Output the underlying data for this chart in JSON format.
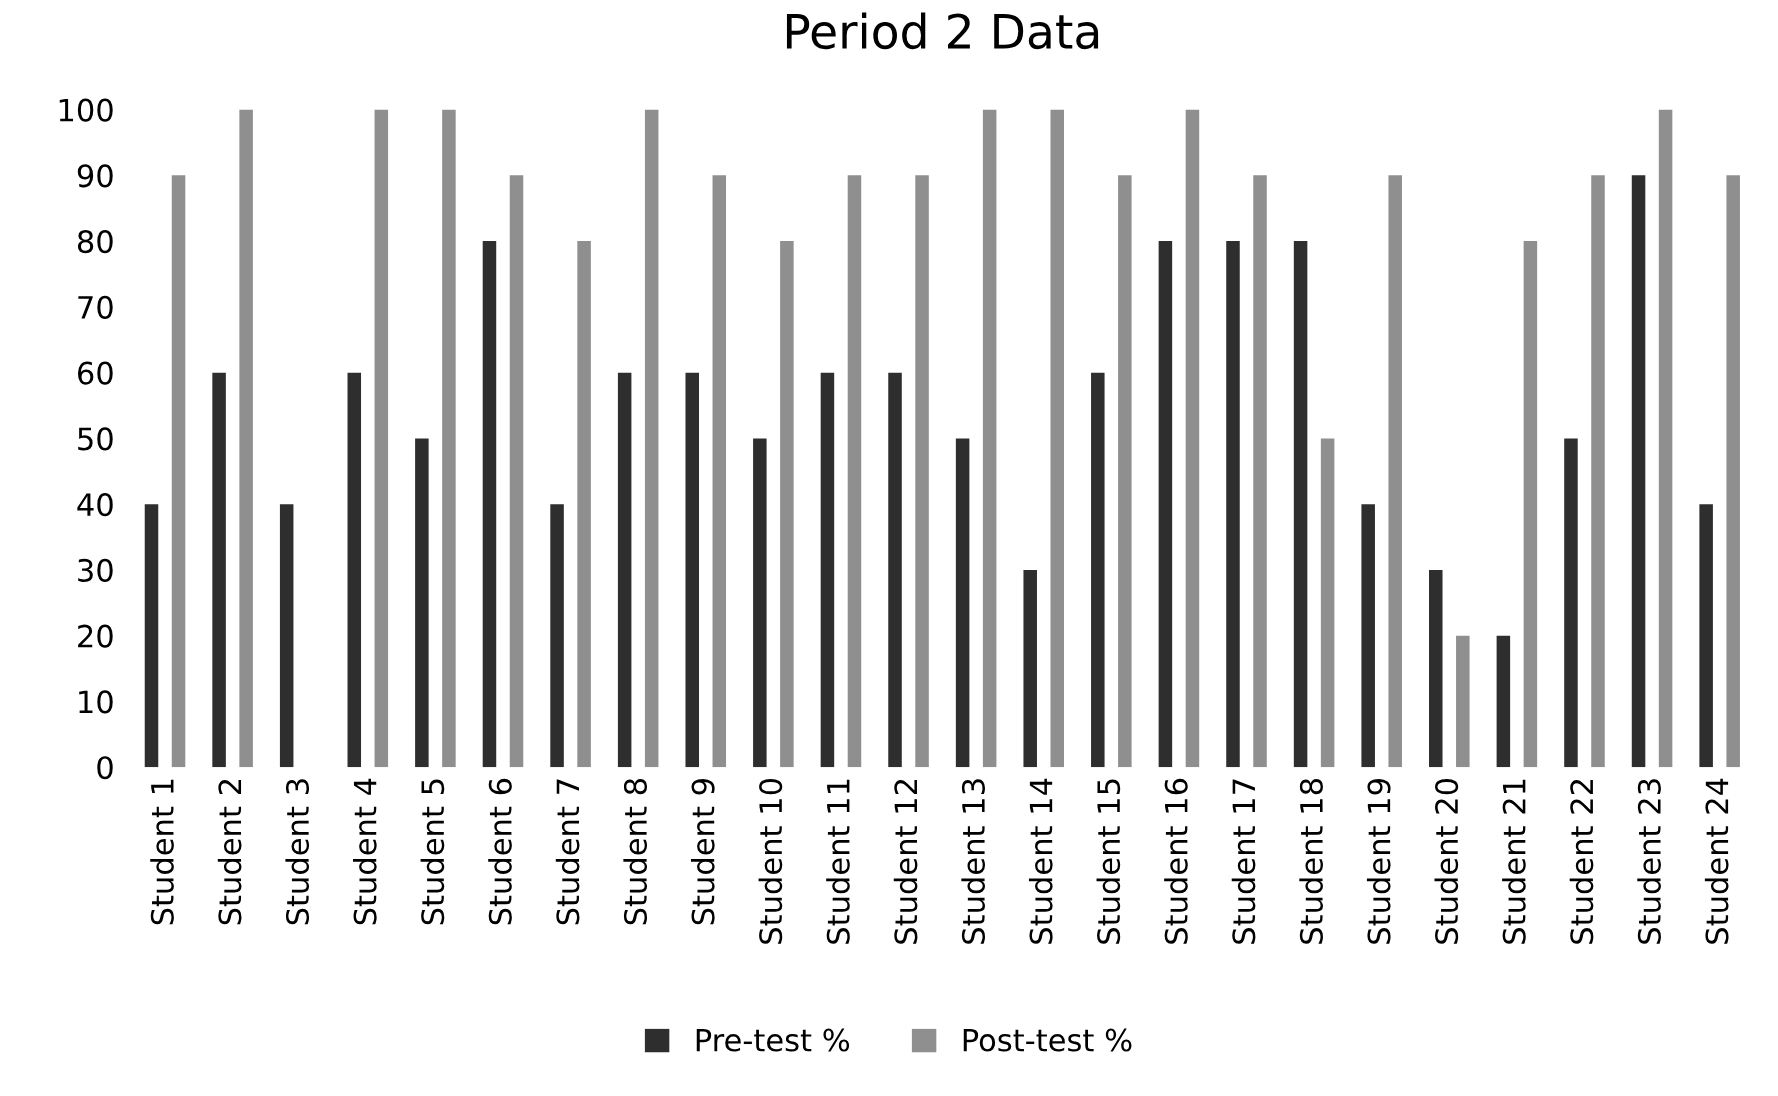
{
  "chart_data": {
    "type": "bar",
    "title": "Period 2 Data",
    "categories": [
      "Student 1",
      "Student 2",
      "Student 3",
      "Student 4",
      "Student 5",
      "Student 6",
      "Student 7",
      "Student 8",
      "Student 9",
      "Student 10",
      "Student 11",
      "Student 12",
      "Student 13",
      "Student 14",
      "Student 15",
      "Student 16",
      "Student 17",
      "Student 18",
      "Student 19",
      "Student 20",
      "Student 21",
      "Student 22",
      "Student 23",
      "Student 24"
    ],
    "series": [
      {
        "name": "Pre-test %",
        "color": "#2e2e2e",
        "values": [
          40,
          60,
          40,
          60,
          50,
          80,
          40,
          60,
          60,
          50,
          60,
          60,
          50,
          30,
          60,
          80,
          80,
          80,
          40,
          30,
          20,
          50,
          90,
          40
        ]
      },
      {
        "name": "Post-test %",
        "color": "#8f8f8f",
        "values": [
          90,
          100,
          null,
          100,
          100,
          90,
          80,
          100,
          90,
          80,
          90,
          90,
          100,
          100,
          90,
          100,
          90,
          50,
          90,
          20,
          80,
          90,
          100,
          90
        ]
      }
    ],
    "ylim": [
      0,
      100
    ],
    "yticks": [
      0,
      10,
      20,
      30,
      40,
      50,
      60,
      70,
      80,
      90,
      100
    ],
    "grid": false,
    "legend": "bottom"
  }
}
